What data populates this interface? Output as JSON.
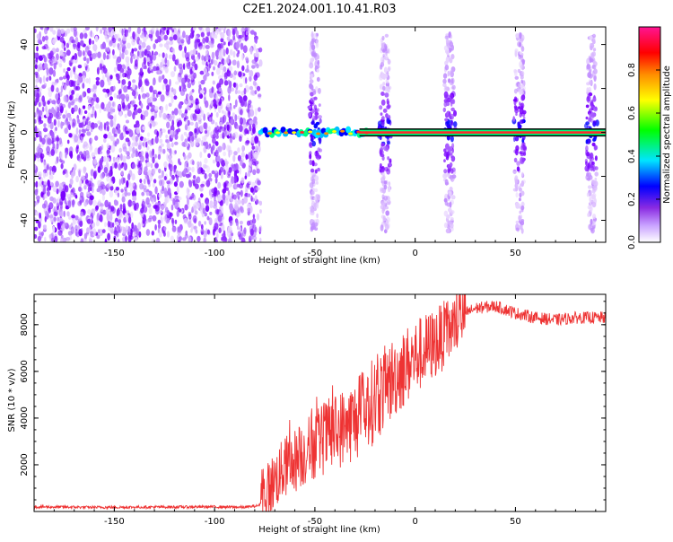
{
  "title": "C2E1.2024.001.10.41.R03",
  "chart_data": [
    {
      "type": "heatmap",
      "name": "spectrogram",
      "xlabel": "Height of straight line (km)",
      "ylabel": "Frequency (Hz)",
      "xlim": [
        -190,
        95
      ],
      "ylim": [
        -50,
        48
      ],
      "xticks": [
        -150,
        -100,
        -50,
        0,
        50
      ],
      "yticks": [
        -40,
        -20,
        0,
        20,
        40
      ],
      "colorbar": {
        "label": "Normalized spectral amplitude",
        "range": [
          0,
          1
        ],
        "ticks": [
          0.0,
          0.2,
          0.4,
          0.6,
          0.8
        ],
        "colors": [
          "#ffffff",
          "#c8a0ff",
          "#8a2be2",
          "#0000ff",
          "#00e5ff",
          "#00ff00",
          "#ffff00",
          "#ff8c00",
          "#ff0000",
          "#ff1493"
        ]
      },
      "noise_region_x": [
        -190,
        -77
      ],
      "carrier_line": {
        "frequency": 0,
        "x_start": -77,
        "x_end": 95
      },
      "bursts_x": [
        -50,
        -15,
        17,
        52,
        88
      ]
    },
    {
      "type": "line",
      "name": "snr",
      "xlabel": "Height of straight line (km)",
      "ylabel": "SNR (10 * v/v)",
      "xlim": [
        -190,
        95
      ],
      "ylim": [
        0,
        9300
      ],
      "xticks": [
        -150,
        -100,
        -50,
        0,
        50
      ],
      "yticks": [
        2000,
        4000,
        6000,
        8000
      ],
      "color": "#ee3333",
      "points": [
        [
          -190,
          200
        ],
        [
          -160,
          180
        ],
        [
          -130,
          190
        ],
        [
          -100,
          200
        ],
        [
          -85,
          180
        ],
        [
          -78,
          250
        ],
        [
          -72,
          1100
        ],
        [
          -65,
          1900
        ],
        [
          -58,
          2300
        ],
        [
          -50,
          2900
        ],
        [
          -40,
          3400
        ],
        [
          -30,
          3900
        ],
        [
          -20,
          4800
        ],
        [
          -10,
          5800
        ],
        [
          0,
          6600
        ],
        [
          10,
          7200
        ],
        [
          20,
          8000
        ],
        [
          25,
          8500
        ],
        [
          30,
          8700
        ],
        [
          40,
          8800
        ],
        [
          50,
          8500
        ],
        [
          60,
          8300
        ],
        [
          70,
          8200
        ],
        [
          80,
          8300
        ],
        [
          95,
          8300
        ]
      ]
    }
  ]
}
